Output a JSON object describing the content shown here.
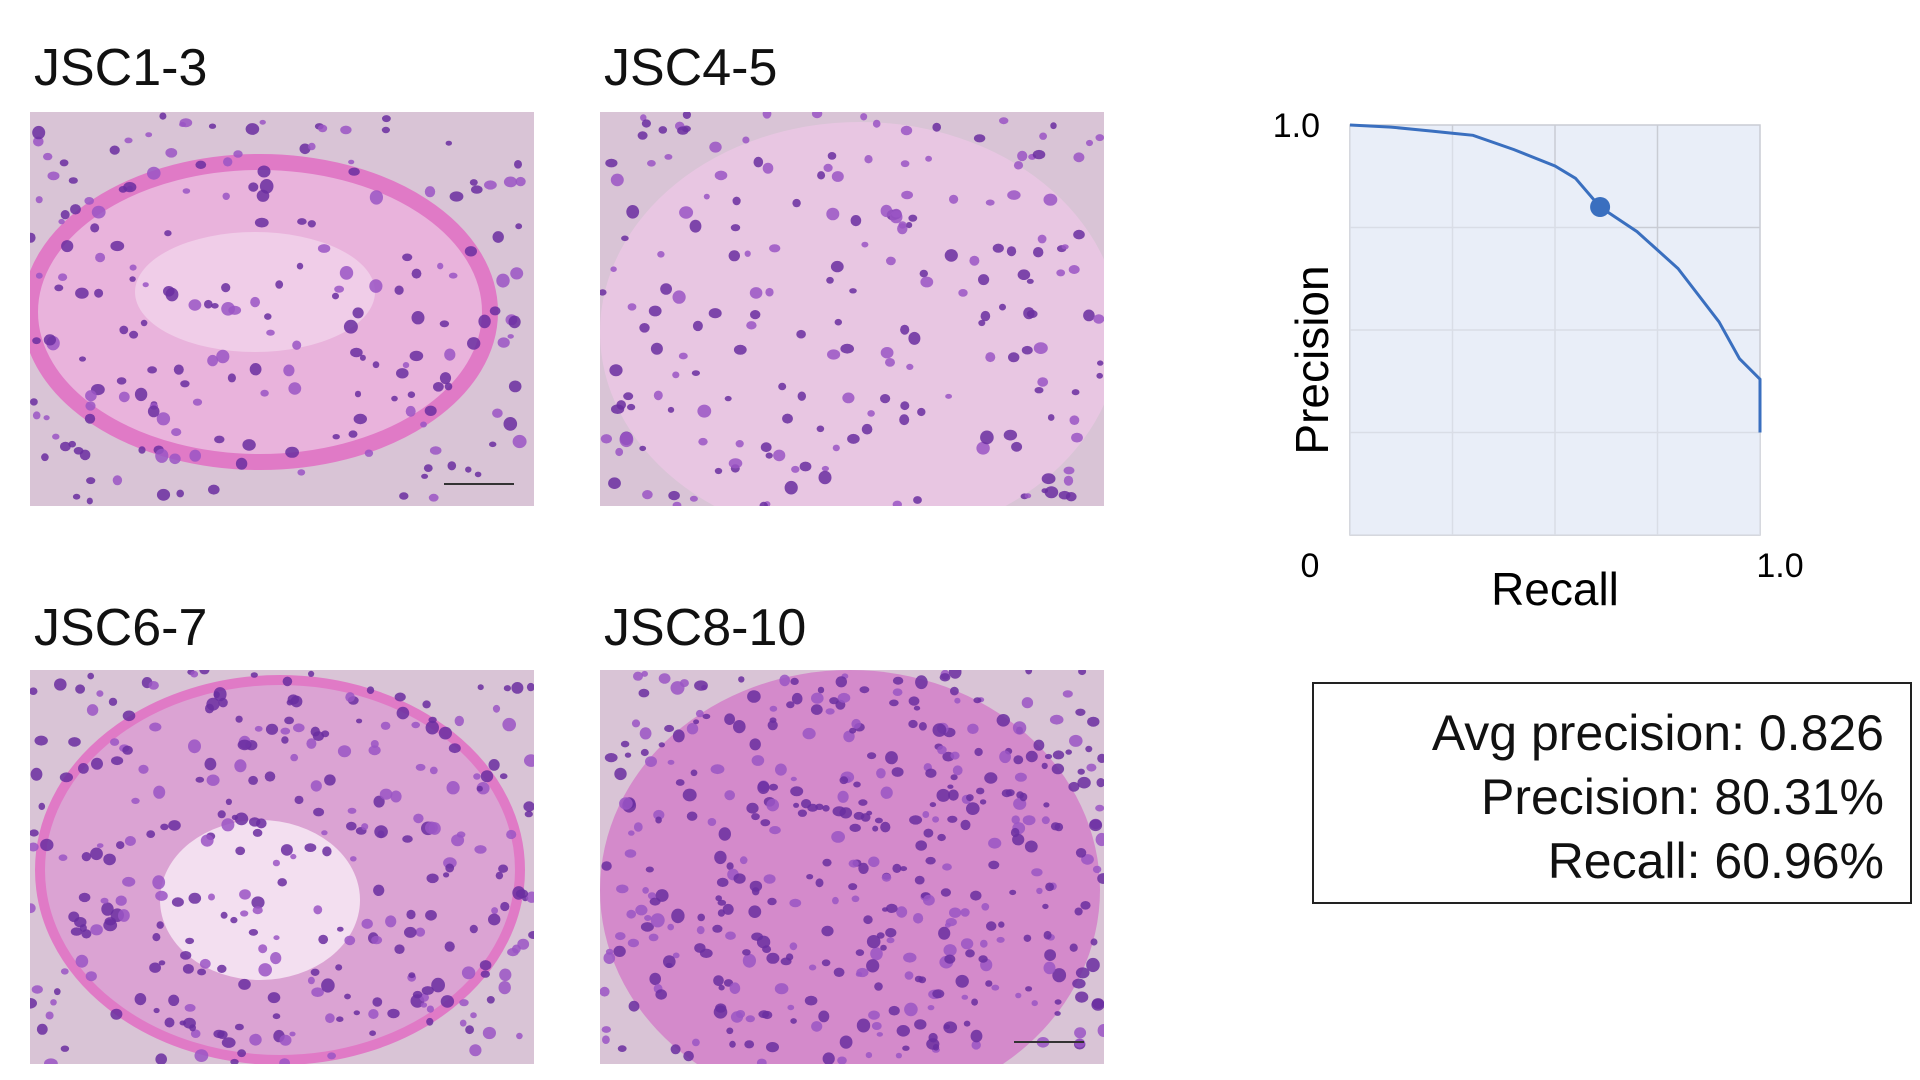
{
  "panels": [
    {
      "label": "JSC1-3",
      "scale_bar": true,
      "pattern": "ring"
    },
    {
      "label": "JSC4-5",
      "scale_bar": false,
      "pattern": "loose"
    },
    {
      "label": "JSC6-7",
      "scale_bar": false,
      "pattern": "dense-center"
    },
    {
      "label": "JSC8-10",
      "scale_bar": true,
      "pattern": "packed"
    }
  ],
  "colors": {
    "tissue_bg": "#d9c4d6",
    "tissue_pink": "#e07ac6",
    "nucleus": "#6a2ea0",
    "nucleus_light": "#9a55c4",
    "curve": "#3a6fbf",
    "plot_fill": "#e9eef8",
    "grid": "#c9ccd4"
  },
  "chart_data": {
    "type": "line",
    "title": "",
    "xlabel": "Recall",
    "ylabel": "Precision",
    "x_tick_labels": {
      "min": "0",
      "max": "1.0"
    },
    "y_tick_labels": {
      "max": "1.0"
    },
    "xlim": [
      0,
      1
    ],
    "ylim": [
      0,
      1
    ],
    "grid": true,
    "series": [
      {
        "x": [
          0.0,
          0.1,
          0.2,
          0.25,
          0.3,
          0.4,
          0.5,
          0.55,
          0.61,
          0.7,
          0.8,
          0.9,
          0.95,
          1.0,
          1.0
        ],
        "y": [
          1.0,
          0.995,
          0.985,
          0.98,
          0.975,
          0.94,
          0.9,
          0.87,
          0.8,
          0.74,
          0.65,
          0.52,
          0.43,
          0.38,
          0.25
        ]
      }
    ],
    "marker": {
      "x": 0.61,
      "y": 0.8
    }
  },
  "stats": {
    "avg_precision": "Avg precision: 0.826",
    "precision": "Precision: 80.31%",
    "recall": "Recall: 60.96%"
  }
}
